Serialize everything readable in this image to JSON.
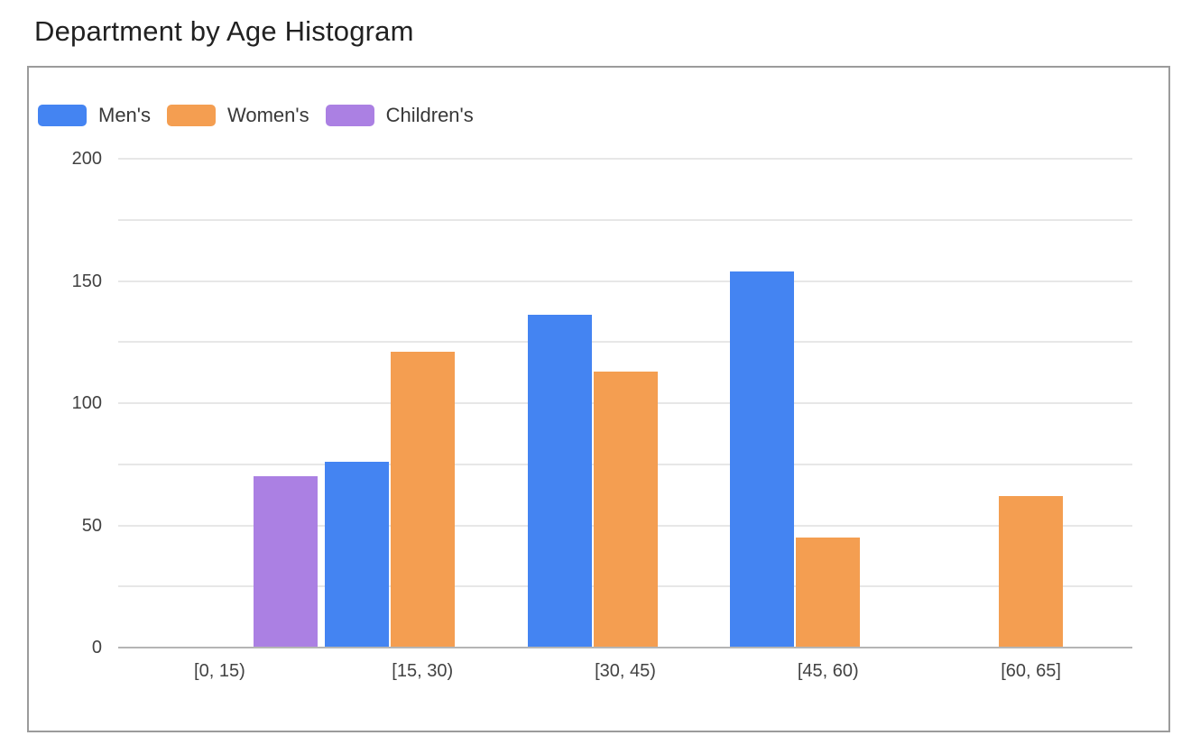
{
  "page": {
    "title": "Department by Age Histogram"
  },
  "chart_data": {
    "type": "bar",
    "title": "Department by Age Histogram",
    "categories": [
      "[0, 15)",
      "[15, 30)",
      "[30, 45)",
      "[45, 60)",
      "[60, 65]"
    ],
    "series": [
      {
        "name": "Men's",
        "color": "#4484F2",
        "values": [
          0,
          76,
          136,
          154,
          0
        ]
      },
      {
        "name": "Women's",
        "color": "#F49E51",
        "values": [
          0,
          121,
          113,
          45,
          62
        ]
      },
      {
        "name": "Children's",
        "color": "#AB80E3",
        "values": [
          70,
          0,
          0,
          0,
          0
        ]
      }
    ],
    "xlabel": "",
    "ylabel": "",
    "ylim": [
      0,
      200
    ],
    "yticks": [
      0,
      50,
      100,
      150,
      200
    ],
    "grid_step": 25,
    "grid": true,
    "legend_position": "top-left"
  },
  "colors": {
    "background": "#ffffff",
    "container_border": "#9b9b9b",
    "gridline": "#e7e7e7",
    "axis_baseline": "#b5b5b5",
    "title_text": "#212121",
    "tick_text": "#424242",
    "legend_text": "#383838"
  }
}
